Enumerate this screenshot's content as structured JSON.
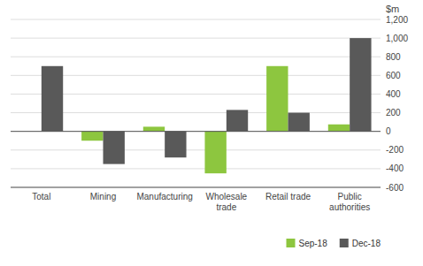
{
  "chart_data": {
    "type": "bar",
    "categories": [
      "Total",
      "Mining",
      "Manufacturing",
      "Wholesale\ntrade",
      "Retail trade",
      "Public\nauthorities"
    ],
    "series": [
      {
        "name": "Sep-18",
        "color": "#8dc63f",
        "values": [
          0,
          -100,
          50,
          -450,
          700,
          75
        ]
      },
      {
        "name": "Dec-18",
        "color": "#595959",
        "values": [
          700,
          -350,
          -280,
          230,
          200,
          1000
        ]
      }
    ],
    "ylabel": "$m",
    "ylim": [
      -600,
      1200
    ],
    "yticks": [
      -600,
      -400,
      -200,
      0,
      200,
      400,
      600,
      800,
      {
        "value": 1000,
        "label": "1,000"
      },
      {
        "value": 1200,
        "label": "1,200"
      }
    ],
    "grid": true,
    "legend": "lower right"
  }
}
